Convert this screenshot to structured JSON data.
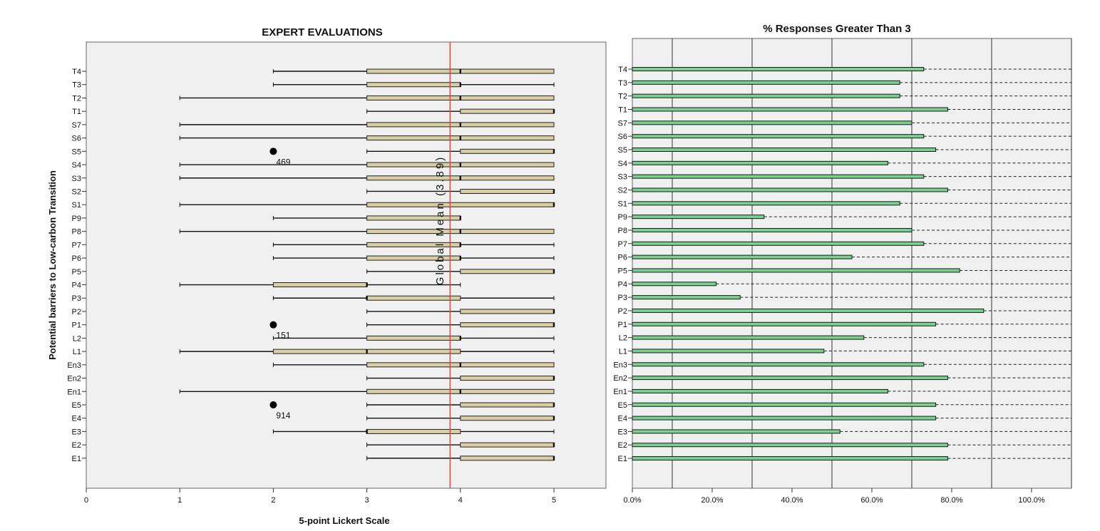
{
  "chart_data": [
    {
      "type": "boxplot",
      "title": "EXPERT EVALUATIONS",
      "xlabel": "5-point Lickert Scale",
      "ylabel": "Potential barriers to Low-carbon Transition",
      "xlim": [
        0,
        5.55
      ],
      "xticks": [
        "0",
        "1",
        "2",
        "3",
        "4",
        "5"
      ],
      "reference_line": {
        "value": 3.89,
        "label": "Global Mean (3.89)",
        "color": "#e8413c"
      },
      "box_color": "#d8cfa4",
      "panel_color": "#f0f0f0",
      "grid": false,
      "categories": [
        "T4",
        "T3",
        "T2",
        "T1",
        "S7",
        "S6",
        "S5",
        "S4",
        "S3",
        "S2",
        "S1",
        "P9",
        "P8",
        "P7",
        "P6",
        "P5",
        "P4",
        "P3",
        "P2",
        "P1",
        "L2",
        "L1",
        "En3",
        "En2",
        "En1",
        "E5",
        "E4",
        "E3",
        "E2",
        "E1"
      ],
      "boxes": [
        {
          "min": 2,
          "q1": 3,
          "median": 4,
          "q3": 5,
          "max": 5
        },
        {
          "min": 2,
          "q1": 3,
          "median": 4,
          "q3": 4,
          "max": 5
        },
        {
          "min": 1,
          "q1": 3,
          "median": 4,
          "q3": 5,
          "max": 5
        },
        {
          "min": 3,
          "q1": 4,
          "median": 5,
          "q3": 5,
          "max": 5
        },
        {
          "min": 1,
          "q1": 3,
          "median": 4,
          "q3": 5,
          "max": 5
        },
        {
          "min": 1,
          "q1": 3,
          "median": 4,
          "q3": 5,
          "max": 5
        },
        {
          "min": 3,
          "q1": 4,
          "median": 5,
          "q3": 5,
          "max": 5
        },
        {
          "min": 1,
          "q1": 3,
          "median": 4,
          "q3": 5,
          "max": 5
        },
        {
          "min": 1,
          "q1": 3,
          "median": 4,
          "q3": 5,
          "max": 5
        },
        {
          "min": 3,
          "q1": 4,
          "median": 5,
          "q3": 5,
          "max": 5
        },
        {
          "min": 1,
          "q1": 3,
          "median": 5,
          "q3": 5,
          "max": 5
        },
        {
          "min": 2,
          "q1": 3,
          "median": 4,
          "q3": 4,
          "max": 4
        },
        {
          "min": 1,
          "q1": 3,
          "median": 4,
          "q3": 5,
          "max": 5
        },
        {
          "min": 2,
          "q1": 3,
          "median": 4,
          "q3": 4,
          "max": 5
        },
        {
          "min": 2,
          "q1": 3,
          "median": 4,
          "q3": 4,
          "max": 5
        },
        {
          "min": 3,
          "q1": 4,
          "median": 5,
          "q3": 5,
          "max": 5
        },
        {
          "min": 1,
          "q1": 2,
          "median": 3,
          "q3": 3,
          "max": 4
        },
        {
          "min": 2,
          "q1": 3,
          "median": 3,
          "q3": 4,
          "max": 5
        },
        {
          "min": 3,
          "q1": 4,
          "median": 5,
          "q3": 5,
          "max": 5
        },
        {
          "min": 3,
          "q1": 4,
          "median": 5,
          "q3": 5,
          "max": 5
        },
        {
          "min": 2,
          "q1": 3,
          "median": 4,
          "q3": 4,
          "max": 5
        },
        {
          "min": 1,
          "q1": 2,
          "median": 3,
          "q3": 4,
          "max": 5
        },
        {
          "min": 2,
          "q1": 3,
          "median": 4,
          "q3": 5,
          "max": 5
        },
        {
          "min": 3,
          "q1": 4,
          "median": 5,
          "q3": 5,
          "max": 5
        },
        {
          "min": 1,
          "q1": 3,
          "median": 4,
          "q3": 5,
          "max": 5
        },
        {
          "min": 3,
          "q1": 4,
          "median": 5,
          "q3": 5,
          "max": 5
        },
        {
          "min": 3,
          "q1": 4,
          "median": 5,
          "q3": 5,
          "max": 5
        },
        {
          "min": 2,
          "q1": 3,
          "median": 3,
          "q3": 4,
          "max": 5
        },
        {
          "min": 3,
          "q1": 4,
          "median": 5,
          "q3": 5,
          "max": 5
        },
        {
          "min": 3,
          "q1": 4,
          "median": 5,
          "q3": 5,
          "max": 5
        }
      ],
      "outliers": [
        {
          "category": "S5",
          "value": 2,
          "label": "469"
        },
        {
          "category": "P1",
          "value": 2,
          "label": "151"
        },
        {
          "category": "E5",
          "value": 2,
          "label": "914"
        }
      ]
    },
    {
      "type": "bar",
      "orientation": "horizontal",
      "title": "% Responses Greater Than 3",
      "xlim": [
        0,
        110
      ],
      "xticks": [
        "0.0%",
        "20.0%",
        "40.0%",
        "60.0%",
        "80.0%",
        "100.0%"
      ],
      "gridlines_at": [
        10,
        30,
        50,
        70,
        90,
        110
      ],
      "bar_color": "#79d08f",
      "panel_color": "#f0f0f0",
      "categories": [
        "T4",
        "T3",
        "T2",
        "T1",
        "S7",
        "S6",
        "S5",
        "S4",
        "S3",
        "S2",
        "S1",
        "P9",
        "P8",
        "P7",
        "P6",
        "P5",
        "P4",
        "P3",
        "P2",
        "P1",
        "L2",
        "L1",
        "En3",
        "En2",
        "En1",
        "E5",
        "E4",
        "E3",
        "E2",
        "E1"
      ],
      "values": [
        73,
        67,
        67,
        79,
        70,
        73,
        76,
        64,
        73,
        79,
        67,
        33,
        70,
        73,
        55,
        82,
        21,
        27,
        88,
        76,
        58,
        48,
        73,
        79,
        64,
        76,
        76,
        52,
        79,
        79
      ]
    }
  ]
}
